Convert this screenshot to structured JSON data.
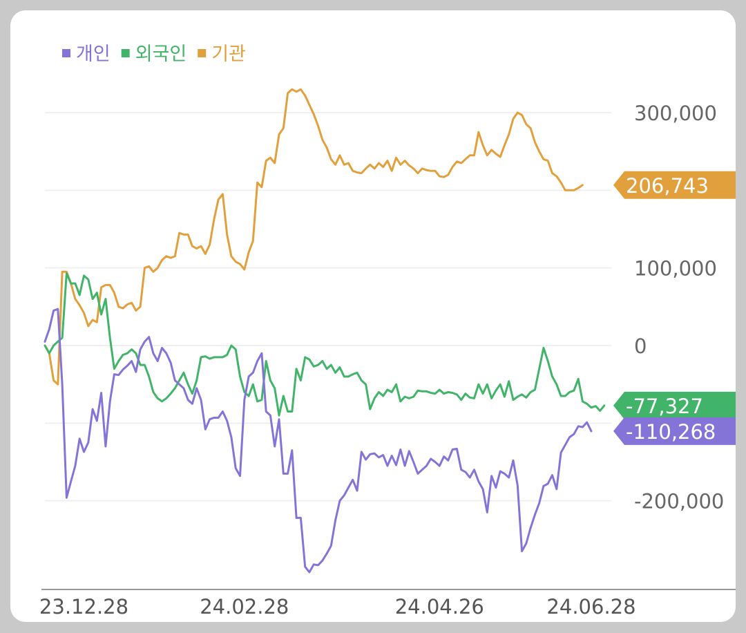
{
  "chart_data": {
    "type": "line",
    "title": "",
    "xlabel": "",
    "ylabel": "",
    "ylim": [
      -300000,
      340000
    ],
    "legend": "top-left",
    "grid": true,
    "y_ticks": [
      300000,
      100000,
      0,
      -200000
    ],
    "y_tick_labels": [
      "300,000",
      "100,000",
      "0",
      "-200,000"
    ],
    "x_tick_labels": [
      "23.12.28",
      "24.02.28",
      "24.04.26",
      "24.06.28"
    ],
    "x_tick_index": [
      9,
      46,
      91,
      126
    ],
    "series": [
      {
        "name": "개인",
        "color": "#8574d8",
        "last_label": "-110,268",
        "values": [
          5000,
          21000,
          45000,
          47000,
          -50000,
          -196000,
          -175000,
          -155000,
          -120000,
          -137000,
          -125000,
          -82000,
          -97000,
          -61000,
          -130000,
          -72000,
          -37000,
          -38000,
          -31000,
          -26000,
          -20000,
          -34000,
          -5000,
          5000,
          11000,
          -10000,
          -20000,
          -3000,
          -10000,
          -22000,
          -45000,
          -50000,
          -55000,
          -70000,
          -75000,
          -55000,
          -70000,
          -108000,
          -95000,
          -93000,
          -93000,
          -85000,
          -97000,
          -118000,
          -158000,
          -168000,
          -70000,
          -40000,
          -35000,
          -20000,
          -10000,
          -85000,
          -90000,
          -130000,
          -95000,
          -165000,
          -165000,
          -135000,
          -222000,
          -222000,
          -285000,
          -292000,
          -282000,
          -283000,
          -277000,
          -268000,
          -258000,
          -225000,
          -200000,
          -193000,
          -183000,
          -173000,
          -187000,
          -137000,
          -147000,
          -140000,
          -139000,
          -144000,
          -141000,
          -155000,
          -142000,
          -154000,
          -134000,
          -155000,
          -136000,
          -150000,
          -165000,
          -160000,
          -155000,
          -146000,
          -150000,
          -155000,
          -143000,
          -148000,
          -134000,
          -133000,
          -160000,
          -163000,
          -170000,
          -160000,
          -175000,
          -185000,
          -215000,
          -168000,
          -183000,
          -162000,
          -165000,
          -170000,
          -148000,
          -180000,
          -265000,
          -255000,
          -235000,
          -218000,
          -203000,
          -181000,
          -178000,
          -167000,
          -185000,
          -138000,
          -128000,
          -118000,
          -114000,
          -104000,
          -105000,
          -99000,
          -110268
        ]
      },
      {
        "name": "외국인",
        "color": "#41b46a",
        "last_label": "-77,327",
        "values": [
          0,
          -10000,
          0,
          5000,
          10000,
          93000,
          80000,
          80000,
          65000,
          90000,
          85000,
          60000,
          68000,
          40000,
          60000,
          10000,
          -30000,
          -20000,
          -12000,
          -10000,
          -5000,
          -10000,
          -25000,
          -25000,
          -40000,
          -60000,
          -68000,
          -72000,
          -68000,
          -62000,
          -55000,
          -45000,
          -35000,
          -50000,
          -62000,
          -45000,
          -15000,
          -14000,
          -17000,
          -15000,
          -15000,
          -15000,
          -12000,
          0,
          -5000,
          -40000,
          -60000,
          -65000,
          -50000,
          -72000,
          -70000,
          -20000,
          -45000,
          -55000,
          -90000,
          -65000,
          -85000,
          -85000,
          -30000,
          -45000,
          -15000,
          -18000,
          -27000,
          -25000,
          -20000,
          -30000,
          -25000,
          -35000,
          -28000,
          -40000,
          -40000,
          -37000,
          -35000,
          -45000,
          -50000,
          -82000,
          -68000,
          -60000,
          -65000,
          -57000,
          -60000,
          -50000,
          -72000,
          -66000,
          -68000,
          -66000,
          -58000,
          -59000,
          -59000,
          -61000,
          -62000,
          -57000,
          -62000,
          -60000,
          -61000,
          -63000,
          -70000,
          -62000,
          -67000,
          -68000,
          -50000,
          -62000,
          -50000,
          -68000,
          -58000,
          -50000,
          -66000,
          -46000,
          -70000,
          -66000,
          -63000,
          -67000,
          -60000,
          -57000,
          -30000,
          -3000,
          -20000,
          -40000,
          -50000,
          -65000,
          -65000,
          -60000,
          -58000,
          -43000,
          -72000,
          -75000,
          -80000,
          -78000,
          -84000,
          -77327
        ]
      },
      {
        "name": "기관",
        "color": "#e2a03c",
        "last_label": "206,743",
        "values": [
          0,
          -10000,
          -45000,
          -50000,
          95000,
          95000,
          80000,
          60000,
          52000,
          42000,
          25000,
          33000,
          30000,
          75000,
          78000,
          78000,
          68000,
          50000,
          48000,
          53000,
          55000,
          45000,
          50000,
          100000,
          102000,
          95000,
          100000,
          110000,
          115000,
          113000,
          115000,
          145000,
          143000,
          143000,
          128000,
          125000,
          128000,
          118000,
          130000,
          162000,
          188000,
          195000,
          143000,
          115000,
          108000,
          105000,
          98000,
          120000,
          135000,
          210000,
          204000,
          238000,
          242000,
          235000,
          272000,
          280000,
          325000,
          330000,
          327000,
          330000,
          322000,
          310000,
          298000,
          283000,
          265000,
          255000,
          240000,
          233000,
          245000,
          233000,
          235000,
          225000,
          223000,
          222000,
          228000,
          233000,
          228000,
          235000,
          230000,
          238000,
          225000,
          242000,
          233000,
          238000,
          232000,
          228000,
          222000,
          228000,
          226000,
          225000,
          225000,
          218000,
          217000,
          220000,
          230000,
          237000,
          235000,
          240000,
          245000,
          245000,
          275000,
          258000,
          245000,
          252000,
          247000,
          243000,
          258000,
          272000,
          292000,
          300000,
          297000,
          285000,
          280000,
          262000,
          250000,
          240000,
          238000,
          222000,
          218000,
          210000,
          200000,
          200000,
          200000,
          203000,
          206743
        ]
      }
    ]
  }
}
